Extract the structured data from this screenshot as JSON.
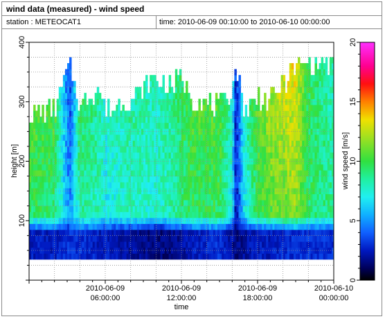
{
  "window": {
    "title": "wind data (measured) - wind speed"
  },
  "info": {
    "station": "station : METEOCAT1",
    "timespan": "time: 2010-06-09 00:10:00 to 2010-06-10 00:00:00"
  },
  "chart_data": {
    "type": "heatmap",
    "xlabel": "time",
    "ylabel": "height [m]",
    "colorbar_label": "wind speed [m/s]",
    "xlim": [
      0,
      24
    ],
    "ylim": [
      0,
      400
    ],
    "clim": [
      0,
      20
    ],
    "grid": true,
    "x_ticks": [
      {
        "value": 6,
        "line1": "2010-06-09",
        "line2": "06:00:00"
      },
      {
        "value": 12,
        "line1": "2010-06-09",
        "line2": "12:00:00"
      },
      {
        "value": 18,
        "line1": "2010-06-09",
        "line2": "18:00:00"
      },
      {
        "value": 24,
        "line1": "2010-06-10",
        "line2": "00:00:00"
      }
    ],
    "y_ticks": [
      100,
      200,
      300,
      400
    ],
    "colorbar_ticks": [
      0,
      5,
      10,
      15,
      20
    ],
    "height_levels": [
      40,
      50,
      60,
      70,
      80,
      90,
      100,
      110,
      120,
      130,
      140,
      150,
      160,
      170,
      180,
      190,
      200,
      210,
      220,
      230,
      240,
      250,
      260,
      270,
      280,
      290,
      300,
      310,
      320,
      330,
      340,
      350,
      360,
      370
    ],
    "time_step_minutes": 10,
    "profiles": {
      "hours": [
        0,
        2,
        3.2,
        4,
        5.5,
        6,
        8,
        10,
        11,
        12,
        13,
        15,
        16,
        16.3,
        17,
        18,
        19,
        21,
        22,
        24
      ],
      "top_height": [
        280,
        285,
        365,
        290,
        330,
        285,
        305,
        340,
        325,
        340,
        305,
        290,
        320,
        365,
        285,
        310,
        300,
        360,
        365,
        365
      ],
      "low_speed": [
        2.5,
        2.5,
        3.0,
        3.0,
        2.5,
        2.5,
        2.0,
        1.5,
        1.5,
        2.0,
        2.5,
        3.0,
        2.0,
        1.5,
        2.0,
        2.5,
        2.5,
        3.0,
        3.0,
        3.0
      ],
      "mid_speed": [
        9.5,
        9.0,
        5.0,
        8.5,
        8.0,
        7.0,
        8.0,
        7.5,
        8.0,
        9.0,
        9.5,
        9.5,
        7.0,
        2.0,
        7.0,
        9.5,
        10.5,
        11.5,
        9.5,
        8.5
      ],
      "top_speed": [
        10.5,
        10.5,
        3.0,
        9.5,
        8.5,
        7.5,
        8.5,
        8.0,
        8.5,
        9.5,
        10.5,
        10.5,
        7.5,
        2.5,
        8.0,
        11.0,
        12.0,
        13.5,
        9.5,
        8.0
      ]
    },
    "colormap": [
      {
        "value": 0,
        "color": "#000000"
      },
      {
        "value": 1.0,
        "color": "#00005a"
      },
      {
        "value": 2.5,
        "color": "#0018c0"
      },
      {
        "value": 4.0,
        "color": "#1060ff"
      },
      {
        "value": 5.5,
        "color": "#10b0ff"
      },
      {
        "value": 7.0,
        "color": "#20f0f0"
      },
      {
        "value": 8.5,
        "color": "#20f0a0"
      },
      {
        "value": 10.0,
        "color": "#30e040"
      },
      {
        "value": 12.0,
        "color": "#a0e020"
      },
      {
        "value": 13.5,
        "color": "#f0e000"
      },
      {
        "value": 15.0,
        "color": "#ff8000"
      },
      {
        "value": 16.5,
        "color": "#ff1010"
      },
      {
        "value": 18.0,
        "color": "#ff0090"
      },
      {
        "value": 20.0,
        "color": "#ff30ff"
      }
    ]
  }
}
